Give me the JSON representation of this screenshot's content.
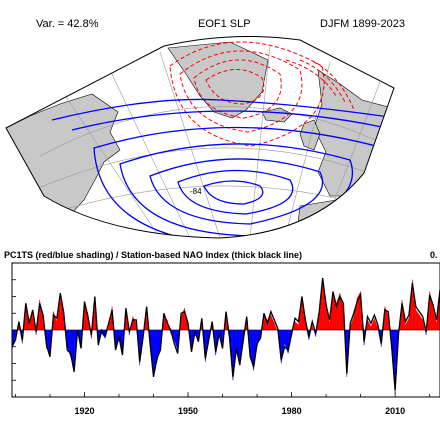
{
  "header": {
    "variance": "Var. = 42.8%",
    "title": "EOF1 SLP",
    "season": "DJFM 1899-2023"
  },
  "map": {
    "projection": "polar stereographic sector (North Atlantic)",
    "positive_contour_color": "#ff0000",
    "negative_contour_color": "#0000ff",
    "land_color": "#c8c8c8",
    "ocean_color": "#ffffff",
    "contour_label": "-84"
  },
  "timeseries": {
    "title": "PC1TS (red/blue shading) / Station-based NAO Index (thick black line)",
    "corner_text": "0.",
    "positive_color": "#ff0000",
    "negative_color": "#0000ff",
    "line_color": "#000000"
  },
  "chart_data": {
    "type": "area",
    "title": "PC1TS (red/blue shading) / Station-based NAO Index (thick black line)",
    "x_ticks": [
      "1920",
      "1950",
      "1980",
      "2010"
    ],
    "xlim": [
      1899,
      2023
    ],
    "ylim": [
      -4,
      4
    ],
    "grid": false,
    "x": [
      1899,
      1900,
      1901,
      1902,
      1903,
      1904,
      1905,
      1906,
      1907,
      1908,
      1909,
      1910,
      1911,
      1912,
      1913,
      1914,
      1915,
      1916,
      1917,
      1918,
      1919,
      1920,
      1921,
      1922,
      1923,
      1924,
      1925,
      1926,
      1927,
      1928,
      1929,
      1930,
      1931,
      1932,
      1933,
      1934,
      1935,
      1936,
      1937,
      1938,
      1939,
      1940,
      1941,
      1942,
      1943,
      1944,
      1945,
      1946,
      1947,
      1948,
      1949,
      1950,
      1951,
      1952,
      1953,
      1954,
      1955,
      1956,
      1957,
      1958,
      1959,
      1960,
      1961,
      1962,
      1963,
      1964,
      1965,
      1966,
      1967,
      1968,
      1969,
      1970,
      1971,
      1972,
      1973,
      1974,
      1975,
      1976,
      1977,
      1978,
      1979,
      1980,
      1981,
      1982,
      1983,
      1984,
      1985,
      1986,
      1987,
      1988,
      1989,
      1990,
      1991,
      1992,
      1993,
      1994,
      1995,
      1996,
      1997,
      1998,
      1999,
      2000,
      2001,
      2002,
      2003,
      2004,
      2005,
      2006,
      2007,
      2008,
      2009,
      2010,
      2011,
      2012,
      2013,
      2014,
      2015,
      2016,
      2017,
      2018,
      2019,
      2020,
      2021,
      2022,
      2023
    ],
    "series": [
      {
        "values": [
          -1.2,
          -0.4,
          0.3,
          -0.8,
          1.4,
          0.6,
          1.0,
          -0.3,
          1.8,
          0.7,
          -1.1,
          -1.4,
          1.1,
          0.5,
          1.9,
          1.2,
          -1.0,
          -1.6,
          -2.3,
          -0.2,
          -0.9,
          1.5,
          1.0,
          -0.5,
          1.8,
          -0.7,
          -0.2,
          -0.5,
          0.2,
          1.4,
          -1.0,
          -0.6,
          -1.3,
          1.1,
          -0.3,
          0.8,
          0.4,
          -2.1,
          -0.2,
          1.2,
          -1.0,
          -2.6,
          -1.9,
          -1.0,
          0.8,
          0.6,
          -0.2,
          -0.6,
          -1.2,
          0.8,
          1.3,
          0.2,
          -1.1,
          -0.3,
          -0.5,
          0.5,
          -1.9,
          -0.4,
          0.3,
          -1.5,
          -0.4,
          -0.9,
          0.9,
          -0.6,
          -3.0,
          -1.3,
          -1.9,
          -0.8,
          0.6,
          -1.4,
          -2.4,
          -1.0,
          -0.3,
          0.8,
          0.6,
          0.9,
          0.4,
          -0.1,
          -2.0,
          -0.8,
          -1.4,
          -0.4,
          0.5,
          0.3,
          1.8,
          0.4,
          -0.6,
          0.3,
          -0.4,
          0.9,
          2.9,
          1.7,
          0.4,
          2.1,
          1.6,
          2.2,
          1.4,
          -2.8,
          0.2,
          0.8,
          1.9,
          2.3,
          -0.9,
          0.6,
          0.2,
          0.7,
          0.1,
          -1.0,
          1.4,
          0.9,
          -1.2,
          -3.8,
          -0.4,
          1.8,
          0.3,
          0.7,
          3.0,
          1.2,
          0.9,
          0.6,
          -0.3,
          2.3,
          1.3,
          0.4,
          2.6
        ]
      },
      {
        "values": [
          -1.0,
          -0.6,
          0.5,
          -0.6,
          1.6,
          0.4,
          1.2,
          -0.1,
          1.6,
          0.9,
          -0.9,
          -1.6,
          0.9,
          0.7,
          2.2,
          1.0,
          -1.2,
          -1.4,
          -2.5,
          0.0,
          -1.1,
          1.7,
          0.8,
          -0.3,
          2.0,
          -0.9,
          0.0,
          -0.3,
          0.4,
          1.2,
          -1.2,
          -0.4,
          -1.5,
          1.3,
          -0.1,
          0.6,
          0.6,
          -1.9,
          -0.4,
          1.4,
          -0.8,
          -2.8,
          -1.7,
          -1.2,
          1.0,
          0.4,
          0.0,
          -0.8,
          -1.4,
          1.0,
          1.1,
          0.4,
          -1.3,
          -0.1,
          -0.7,
          0.7,
          -1.7,
          -0.6,
          0.5,
          -1.3,
          -0.2,
          -1.1,
          1.1,
          -0.4,
          -2.8,
          -1.1,
          -2.1,
          -0.6,
          0.8,
          -1.6,
          -2.2,
          -0.8,
          -0.5,
          1.0,
          0.4,
          1.1,
          0.6,
          0.1,
          -1.8,
          -1.0,
          -1.2,
          -0.2,
          0.7,
          0.5,
          2.0,
          0.6,
          -0.4,
          0.5,
          -0.2,
          1.1,
          3.1,
          1.5,
          0.6,
          2.3,
          1.4,
          2.0,
          1.6,
          -2.6,
          0.4,
          1.0,
          1.7,
          2.1,
          -0.7,
          0.8,
          0.4,
          0.9,
          0.3,
          -0.8,
          1.2,
          1.1,
          -1.0,
          -3.6,
          -0.2,
          1.6,
          0.5,
          0.9,
          2.8,
          1.4,
          1.1,
          0.8,
          -0.1,
          2.1,
          1.5,
          0.6,
          2.4
        ]
      }
    ]
  }
}
